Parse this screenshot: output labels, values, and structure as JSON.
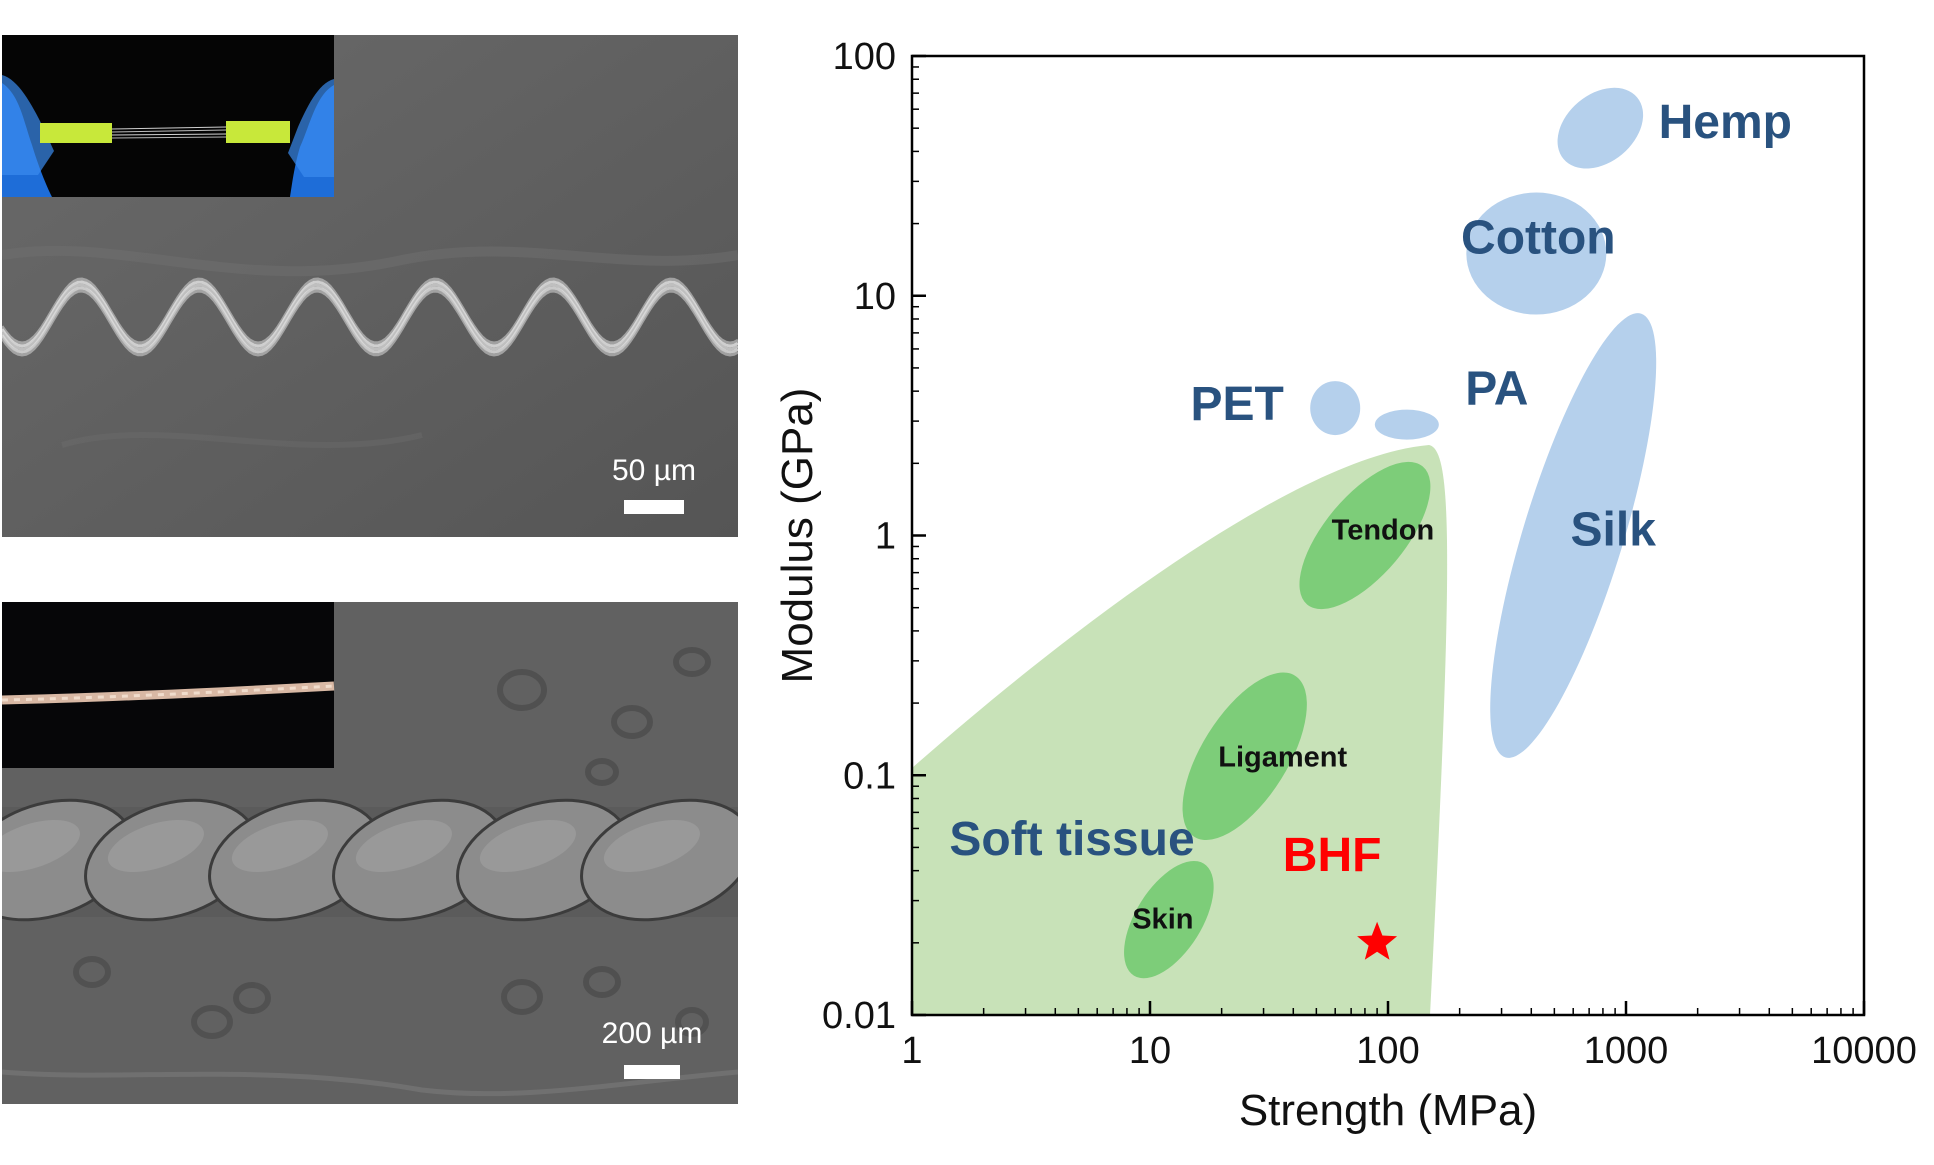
{
  "panels": {
    "top": {
      "scale_label": "50 µm"
    },
    "bottom": {
      "scale_label": "200 µm"
    }
  },
  "colors": {
    "soft_tissue_fill": "#c8e2b8",
    "tissue_region": "#7dcd79",
    "fiber_region": "#b5d0ec",
    "fiber_label": "#29527f",
    "bhf": "#ff0000",
    "sem_gray": "#5e5e5e",
    "glove_blue": "#1f6fd6",
    "holder_yellow": "#c8e83a"
  },
  "chart_data": {
    "type": "scatter",
    "xlabel": "Strength (MPa)",
    "ylabel": "Modulus (GPa)",
    "x_scale": "log",
    "y_scale": "log",
    "xlim": [
      1,
      10000
    ],
    "ylim": [
      0.01,
      100
    ],
    "x_ticks": [
      "1",
      "10",
      "100",
      "1000",
      "10000"
    ],
    "y_ticks": [
      "0.01",
      "0.1",
      "1",
      "10",
      "100"
    ],
    "grid": false,
    "soft_tissue_label": "Soft tissue",
    "regions": [
      {
        "name": "Hemp",
        "group": "fiber",
        "cx": 780,
        "cy": 50
      },
      {
        "name": "Cotton",
        "group": "fiber",
        "cx": 420,
        "cy": 15
      },
      {
        "name": "Silk",
        "group": "fiber",
        "cx": 600,
        "cy": 1.0
      },
      {
        "name": "PET",
        "group": "fiber",
        "cx": 60,
        "cy": 3.4
      },
      {
        "name": "PA",
        "group": "fiber",
        "cx": 120,
        "cy": 2.9
      },
      {
        "name": "Tendon",
        "group": "tissue",
        "cx": 80,
        "cy": 1.0
      },
      {
        "name": "Ligament",
        "group": "tissue",
        "cx": 25,
        "cy": 0.12
      },
      {
        "name": "Skin",
        "group": "tissue",
        "cx": 12,
        "cy": 0.025
      }
    ],
    "points": [
      {
        "name": "BHF",
        "x": 90,
        "y": 0.02,
        "marker": "star"
      }
    ]
  }
}
